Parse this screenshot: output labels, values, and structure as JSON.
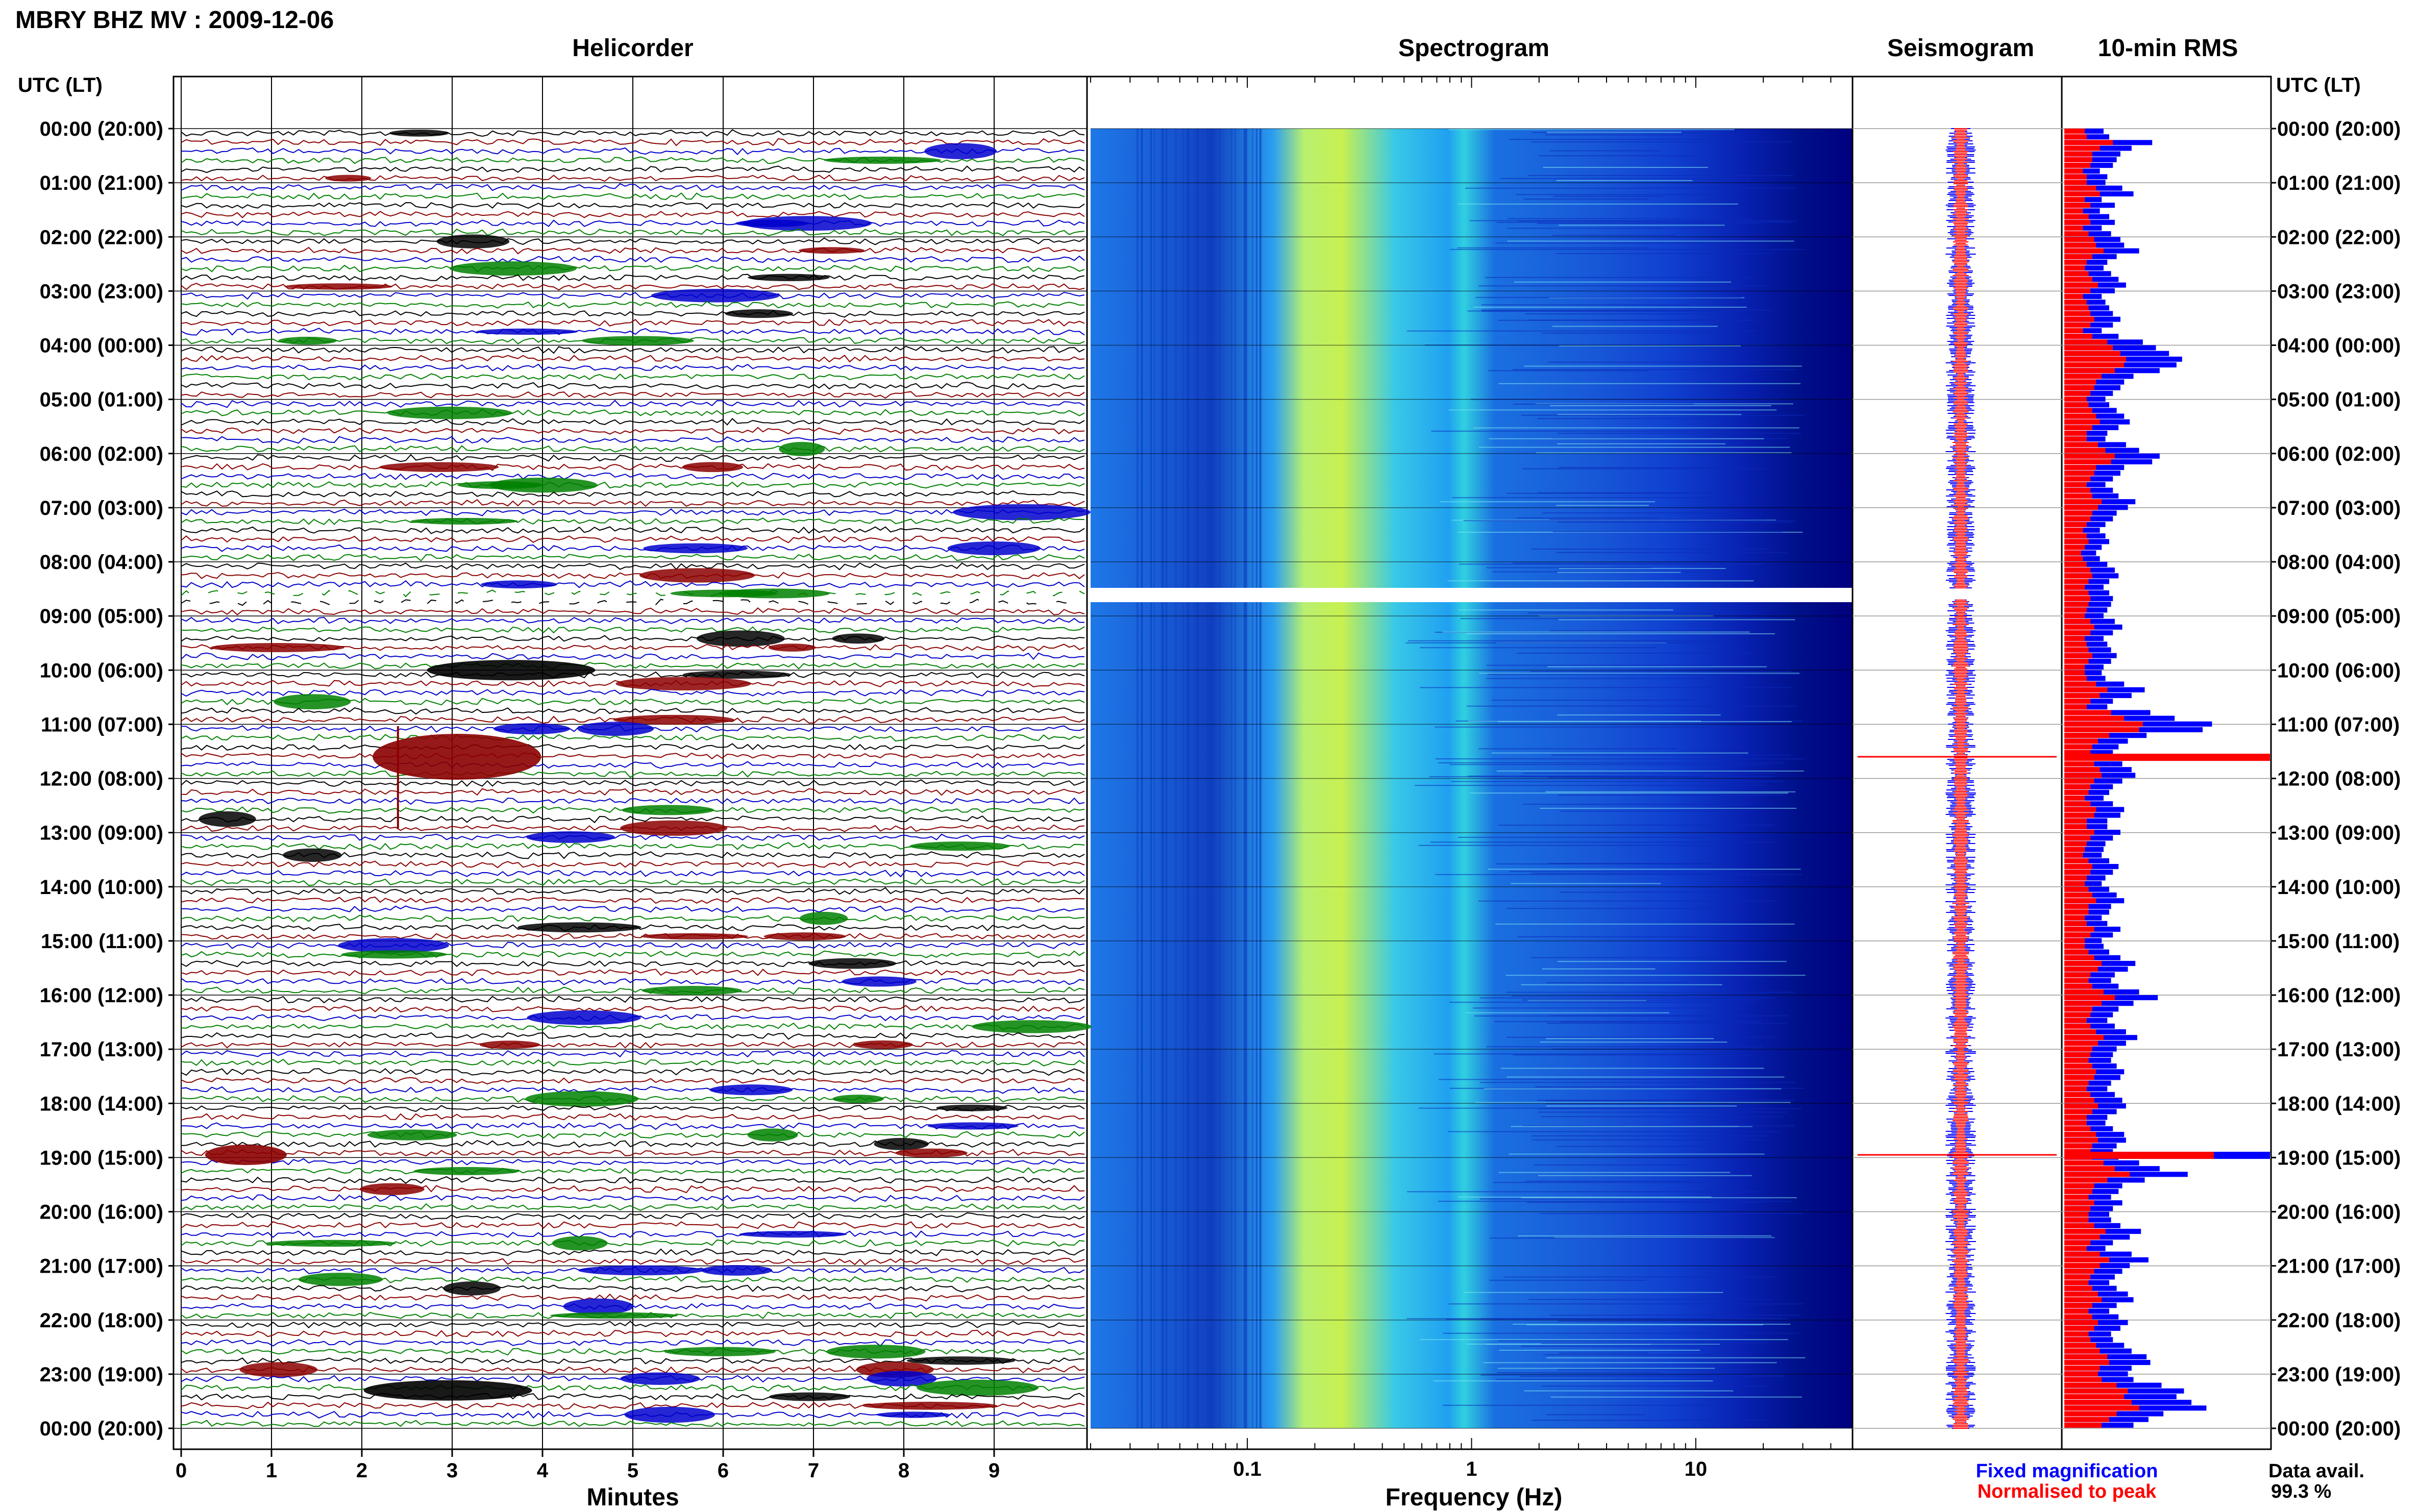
{
  "header": {
    "title": "MBRY BHZ MV : 2009-12-06"
  },
  "panels": {
    "helicorder": "Helicorder",
    "spectrogram": "Spectrogram",
    "seismogram": "Seismogram",
    "rms": "10-min RMS"
  },
  "axes": {
    "utc_header": "UTC (LT)",
    "minutes_label": "Minutes",
    "frequency_label": "Frequency (Hz)",
    "minute_ticks": [
      "0",
      "1",
      "2",
      "3",
      "4",
      "5",
      "6",
      "7",
      "8",
      "9"
    ],
    "frequency_ticks": [
      "0.1",
      "1",
      "10"
    ],
    "time_labels": [
      "00:00 (20:00)",
      "01:00 (21:00)",
      "02:00 (22:00)",
      "03:00 (23:00)",
      "04:00 (00:00)",
      "05:00 (01:00)",
      "06:00 (02:00)",
      "07:00 (03:00)",
      "08:00 (04:00)",
      "09:00 (05:00)",
      "10:00 (06:00)",
      "11:00 (07:00)",
      "12:00 (08:00)",
      "13:00 (09:00)",
      "14:00 (10:00)",
      "15:00 (11:00)",
      "16:00 (12:00)",
      "17:00 (13:00)",
      "18:00 (14:00)",
      "19:00 (15:00)",
      "20:00 (16:00)",
      "21:00 (17:00)",
      "22:00 (18:00)",
      "23:00 (19:00)",
      "00:00 (20:00)"
    ]
  },
  "legend": {
    "fixed": "Fixed magnification",
    "normalised": "Normalised to peak",
    "fixed_color": "#0000ff",
    "normalised_color": "#ff0000"
  },
  "availability": {
    "label": "Data avail.",
    "value": "99.3 %"
  },
  "colors": {
    "trace_cycle": [
      "#000000",
      "#8b0000",
      "#0000cc",
      "#008000"
    ],
    "spectrogram_low": "#00007f",
    "spectrogram_mid": "#2aa0f0",
    "spectrogram_high": "#d8f020"
  },
  "chart_data": {
    "type": "heatmap",
    "time_axis_hours": [
      0,
      24
    ],
    "minutes_axis": [
      0,
      10
    ],
    "frequency_axis_hz": [
      0.02,
      50
    ],
    "frequency_scale": "log",
    "data_gap_hours": [
      8.5,
      8.7
    ],
    "rms_blue": [
      2.1,
      2.4,
      4.7,
      3.6,
      3.0,
      2.8,
      2.6,
      1.9,
      2.3,
      2.2,
      3.1,
      3.7,
      2.0,
      2.7,
      1.9,
      2.4,
      2.7,
      2.0,
      2.5,
      3.0,
      3.2,
      4.0,
      2.8,
      2.3,
      2.1,
      2.5,
      2.9,
      3.3,
      2.7,
      2.0,
      2.2,
      2.4,
      2.6,
      3.0,
      2.6,
      2.0,
      2.9,
      4.2,
      4.9,
      5.6,
      6.3,
      6.0,
      5.1,
      3.7,
      3.2,
      3.0,
      2.6,
      2.2,
      2.4,
      2.8,
      3.2,
      3.5,
      2.9,
      2.3,
      2.2,
      3.3,
      4.0,
      5.1,
      4.7,
      3.2,
      3.0,
      2.6,
      2.2,
      2.6,
      2.9,
      3.8,
      3.4,
      2.8,
      2.6,
      2.2,
      1.9,
      2.2,
      2.4,
      2.0,
      1.7,
      1.9,
      2.3,
      2.7,
      2.9,
      2.4,
      2.1,
      2.4,
      2.6,
      2.5,
      2.3,
      2.1,
      2.7,
      3.1,
      2.6,
      2.1,
      2.3,
      2.5,
      2.8,
      2.5,
      2.1,
      2.0,
      2.2,
      3.2,
      4.3,
      3.6,
      2.6,
      2.3,
      4.6,
      5.9,
      7.9,
      7.4,
      4.4,
      3.4,
      2.9,
      2.6,
      2.9,
      3.1,
      3.6,
      3.8,
      3.1,
      2.6,
      2.4,
      2.1,
      2.6,
      3.2,
      3.0,
      2.3,
      2.3,
      3.0,
      2.6,
      2.2,
      2.1,
      2.0,
      2.4,
      2.9,
      2.6,
      2.2,
      2.0,
      2.4,
      2.8,
      3.2,
      2.5,
      2.4,
      2.0,
      2.3,
      3.0,
      2.6,
      2.0,
      2.1,
      2.4,
      3.0,
      3.8,
      3.4,
      2.7,
      2.5,
      2.9,
      4.0,
      5.0,
      3.7,
      2.9,
      2.6,
      2.3,
      2.7,
      3.3,
      3.9,
      3.3,
      2.8,
      2.6,
      2.5,
      2.8,
      3.2,
      3.0,
      2.5,
      2.3,
      2.7,
      3.1,
      3.3,
      2.8,
      2.3,
      2.2,
      2.6,
      3.2,
      3.3,
      2.8,
      2.6,
      2.9,
      4.0,
      5.1,
      6.6,
      4.3,
      3.1,
      2.9,
      2.5,
      3.1,
      2.6,
      2.4,
      2.5,
      3.0,
      4.1,
      3.5,
      2.6,
      2.2,
      3.6,
      4.5,
      3.5,
      3.1,
      2.7,
      2.4,
      2.8,
      3.4,
      3.7,
      2.8,
      2.4,
      2.9,
      3.4,
      3.0,
      2.5,
      2.6,
      3.2,
      3.6,
      4.4,
      4.6,
      3.6,
      3.4,
      3.7,
      5.2,
      6.4,
      6.0,
      6.8,
      7.6,
      5.3,
      4.5,
      3.7
    ],
    "rms_red": [
      1.1,
      1.2,
      2.6,
      1.9,
      1.5,
      1.5,
      1.4,
      1.0,
      1.2,
      1.2,
      1.7,
      1.9,
      1.1,
      1.4,
      1.0,
      1.3,
      1.4,
      1.0,
      1.3,
      1.6,
      1.7,
      2.1,
      1.5,
      1.2,
      1.1,
      1.3,
      1.5,
      1.8,
      1.4,
      1.0,
      1.2,
      1.3,
      1.4,
      1.6,
      1.4,
      1.0,
      1.5,
      2.3,
      2.6,
      3.0,
      3.3,
      3.2,
      2.7,
      2.0,
      1.7,
      1.6,
      1.4,
      1.2,
      1.3,
      1.5,
      1.7,
      1.9,
      1.5,
      1.2,
      1.2,
      1.8,
      2.2,
      2.7,
      2.5,
      1.7,
      1.6,
      1.4,
      1.2,
      1.4,
      1.5,
      2.0,
      1.8,
      1.5,
      1.4,
      1.2,
      1.0,
      1.2,
      1.3,
      1.1,
      0.9,
      1.0,
      1.2,
      1.4,
      1.5,
      1.3,
      1.1,
      1.3,
      1.4,
      1.3,
      1.2,
      1.1,
      1.4,
      1.6,
      1.4,
      1.1,
      1.2,
      1.3,
      1.5,
      1.3,
      1.1,
      1.1,
      1.2,
      1.7,
      2.3,
      1.9,
      1.4,
      1.2,
      2.5,
      3.2,
      4.2,
      4.0,
      2.4,
      1.8,
      1.5,
      1.4,
      1.5,
      1.6,
      1.9,
      2.0,
      1.6,
      1.4,
      1.3,
      1.1,
      1.4,
      1.7,
      1.6,
      1.2,
      1.2,
      1.6,
      1.4,
      1.2,
      1.1,
      1.0,
      1.3,
      1.5,
      1.4,
      1.2,
      1.1,
      1.3,
      1.5,
      1.7,
      1.3,
      1.3,
      1.1,
      1.2,
      1.6,
      1.4,
      1.1,
      1.1,
      1.3,
      1.6,
      2.0,
      1.8,
      1.4,
      1.3,
      1.5,
      2.1,
      2.7,
      2.0,
      1.5,
      1.4,
      1.2,
      1.4,
      1.7,
      2.1,
      1.8,
      1.5,
      1.4,
      1.3,
      1.5,
      1.7,
      1.6,
      1.3,
      1.2,
      1.4,
      1.6,
      1.8,
      1.5,
      1.2,
      1.2,
      1.4,
      1.7,
      1.8,
      1.5,
      1.4,
      1.5,
      2.1,
      2.7,
      3.5,
      2.3,
      1.6,
      1.5,
      1.3,
      1.6,
      1.4,
      1.3,
      1.3,
      1.6,
      2.2,
      1.9,
      1.4,
      1.2,
      1.9,
      2.4,
      1.9,
      1.6,
      1.4,
      1.3,
      1.5,
      1.8,
      2.0,
      1.5,
      1.3,
      1.5,
      1.8,
      1.6,
      1.3,
      1.4,
      1.7,
      1.9,
      2.3,
      2.4,
      1.9,
      1.8,
      2.0,
      2.8,
      3.4,
      3.2,
      3.6,
      4.0,
      2.8,
      2.4,
      2.0
    ],
    "rms_spikes": [
      {
        "hour": 11.6,
        "blue": 11.0,
        "red": 11.0
      },
      {
        "hour": 18.95,
        "blue": 11.0,
        "red": 8.0
      }
    ],
    "notable_events": [
      {
        "hour": 10.0,
        "minute": 3.0,
        "label": ""
      },
      {
        "hour": 11.6,
        "minute": 2.4,
        "label": ""
      },
      {
        "hour": 18.95,
        "minute": 0.4,
        "label": ""
      },
      {
        "hour": 23.3,
        "minute": 2.3,
        "label": ""
      }
    ]
  }
}
